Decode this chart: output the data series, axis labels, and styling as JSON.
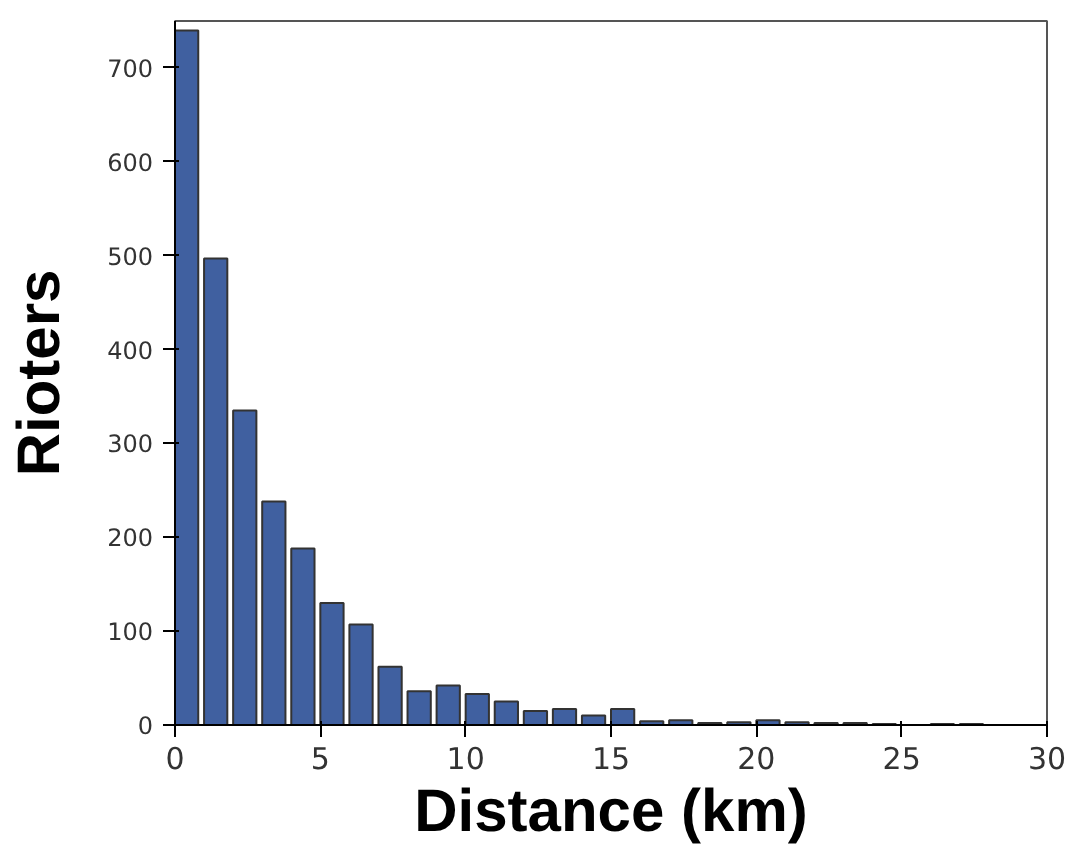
{
  "chart_data": {
    "type": "histogram",
    "xlabel": "Distance (km)",
    "ylabel": "Rioters",
    "bins": [
      0,
      1,
      2,
      3,
      4,
      5,
      6,
      7,
      8,
      9,
      10,
      11,
      12,
      13,
      14,
      15,
      16,
      17,
      18,
      19,
      20,
      21,
      22,
      23,
      24,
      25,
      26,
      27,
      28,
      29,
      30
    ],
    "values": [
      740,
      497,
      335,
      238,
      188,
      130,
      107,
      62,
      36,
      42,
      33,
      25,
      15,
      17,
      10,
      17,
      4,
      5,
      2,
      3,
      5,
      3,
      2,
      2,
      1,
      0,
      1,
      1,
      0,
      0
    ],
    "color": "#4060a0",
    "xlim": [
      0,
      30
    ],
    "ylim": [
      0,
      750
    ],
    "xticks": [
      0,
      5,
      10,
      15,
      20,
      25,
      30
    ],
    "yticks": [
      0,
      100,
      200,
      300,
      400,
      500,
      600,
      700
    ],
    "grid": false
  }
}
